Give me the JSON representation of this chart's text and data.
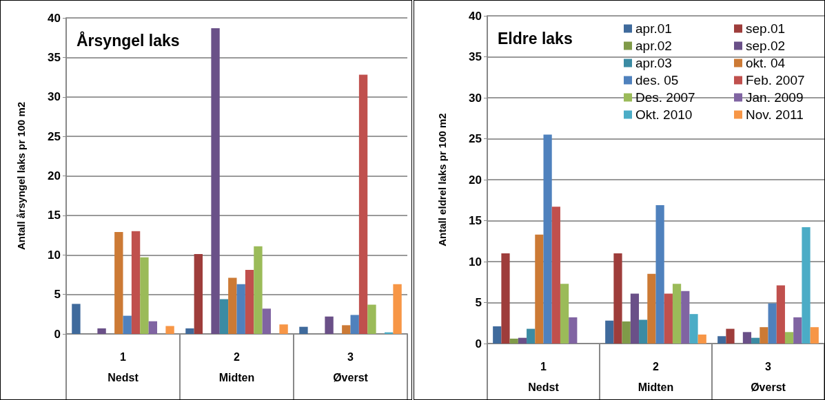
{
  "chart_data": [
    {
      "type": "bar",
      "title": "Årsyngel laks",
      "ylabel": "Antall årsyngel laks pr 100 m2",
      "categories": [
        "1\nNedst",
        "2\nMidten",
        "3\nØverst"
      ],
      "ylim": [
        0,
        40
      ],
      "yticks": [
        0,
        5,
        10,
        15,
        20,
        25,
        30,
        35,
        40
      ],
      "grid": "y",
      "legend": false,
      "series": [
        {
          "color": "#3f6a9c",
          "values": [
            3.8,
            0.7,
            0.9
          ]
        },
        {
          "color": "#9e3d3b",
          "values": [
            0,
            10.1,
            0
          ]
        },
        {
          "color": "#7f9a48",
          "values": [
            0,
            0,
            0
          ]
        },
        {
          "color": "#6a5088",
          "values": [
            0.7,
            38.7,
            2.2
          ]
        },
        {
          "color": "#3b8ba3",
          "values": [
            0,
            4.4,
            0
          ]
        },
        {
          "color": "#cc7a35",
          "values": [
            12.9,
            7.1,
            1.1
          ]
        },
        {
          "color": "#4f81bd",
          "values": [
            2.3,
            6.3,
            2.4
          ]
        },
        {
          "color": "#c0504d",
          "values": [
            13.0,
            8.1,
            32.8
          ]
        },
        {
          "color": "#9bbb59",
          "values": [
            9.7,
            11.1,
            3.7
          ]
        },
        {
          "color": "#8064a2",
          "values": [
            1.6,
            3.2,
            0
          ]
        },
        {
          "color": "#4bacc6",
          "values": [
            0,
            0,
            0.2
          ]
        },
        {
          "color": "#f79646",
          "values": [
            1.0,
            1.2,
            6.3
          ]
        }
      ]
    },
    {
      "type": "bar",
      "title": "Eldre laks",
      "ylabel": "Antall eldrel laks pr 100 m2",
      "categories": [
        "1\nNedst",
        "2\nMidten",
        "3\nØverst"
      ],
      "ylim": [
        0,
        40
      ],
      "yticks": [
        0,
        5,
        10,
        15,
        20,
        25,
        30,
        35,
        40
      ],
      "grid": "y",
      "legend": "top right",
      "series": [
        {
          "name": "apr.01",
          "color": "#3f6a9c",
          "values": [
            2.1,
            2.8,
            0.9
          ]
        },
        {
          "name": "sep.01",
          "color": "#9e3d3b",
          "values": [
            11.0,
            11.0,
            1.8
          ]
        },
        {
          "name": "apr.02",
          "color": "#7f9a48",
          "values": [
            0.6,
            2.7,
            0
          ]
        },
        {
          "name": "sep.02",
          "color": "#6a5088",
          "values": [
            0.7,
            6.1,
            1.4
          ]
        },
        {
          "name": "apr.03",
          "color": "#3b8ba3",
          "values": [
            1.8,
            2.9,
            0.7
          ]
        },
        {
          "name": "okt. 04",
          "color": "#cc7a35",
          "values": [
            13.3,
            8.5,
            2.0
          ]
        },
        {
          "name": "des. 05",
          "color": "#4f81bd",
          "values": [
            25.5,
            16.9,
            4.9
          ]
        },
        {
          "name": "Feb. 2007",
          "color": "#c0504d",
          "values": [
            16.7,
            6.1,
            7.1
          ]
        },
        {
          "name": "Des. 2007",
          "color": "#9bbb59",
          "values": [
            7.3,
            7.3,
            1.4
          ]
        },
        {
          "name": "Jan. 2009",
          "color": "#8064a2",
          "values": [
            3.2,
            6.4,
            3.2
          ]
        },
        {
          "name": "Okt. 2010",
          "color": "#4bacc6",
          "values": [
            0,
            3.6,
            14.2
          ]
        },
        {
          "name": "Nov. 2011",
          "color": "#f79646",
          "values": [
            0,
            1.1,
            2.0
          ]
        }
      ]
    }
  ]
}
